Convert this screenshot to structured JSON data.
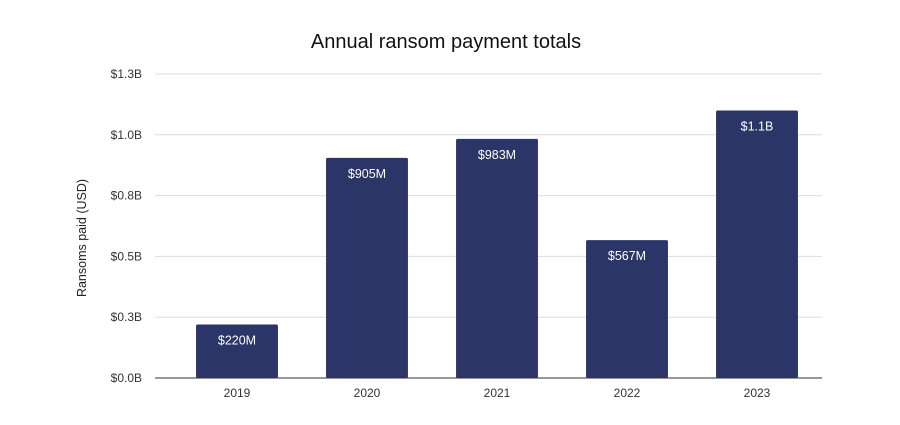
{
  "chart_data": {
    "type": "bar",
    "title": "Annual ransom payment totals",
    "xlabel": "",
    "ylabel": "Ransoms paid (USD)",
    "categories": [
      "2019",
      "2020",
      "2021",
      "2022",
      "2023"
    ],
    "values": [
      220000000,
      905000000,
      983000000,
      567000000,
      1100000000
    ],
    "data_labels": [
      "$220M",
      "$905M",
      "$983M",
      "$567M",
      "$1.1B"
    ],
    "ylim": [
      0,
      1250000000
    ],
    "y_ticks": [
      0,
      250000000,
      500000000,
      750000000,
      1000000000,
      1250000000
    ],
    "y_tick_labels": [
      "$0.0B",
      "$0.3B",
      "$0.5B",
      "$0.8B",
      "$1.0B",
      "$1.3B"
    ],
    "grid": true,
    "colors": {
      "bar": "#2b3567",
      "grid": "#dcdcdc",
      "axis": "#333333",
      "data_label": "#ffffff"
    }
  }
}
